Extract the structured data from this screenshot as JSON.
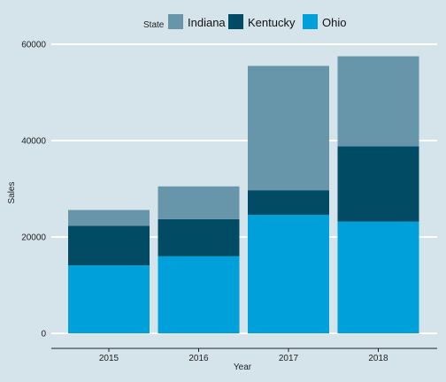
{
  "chart_data": {
    "type": "bar",
    "stacked": true,
    "title": "",
    "xlabel": "Year",
    "ylabel": "Sales",
    "categories": [
      "2015",
      "2016",
      "2017",
      "2018"
    ],
    "ylim": [
      0,
      62000
    ],
    "yticks": [
      0,
      20000,
      40000,
      60000
    ],
    "ytick_labels": [
      "0",
      "20000",
      "40000",
      "60000"
    ],
    "grid": "horizontal major",
    "legend": {
      "title": "State",
      "position": "top",
      "entries": [
        "Indiana",
        "Kentucky",
        "Ohio"
      ]
    },
    "series": [
      {
        "name": "Ohio",
        "color": "#00a0db",
        "values": [
          14100,
          16000,
          24600,
          23200
        ]
      },
      {
        "name": "Kentucky",
        "color": "#014b64",
        "values": [
          8200,
          7700,
          5100,
          15600
        ]
      },
      {
        "name": "Indiana",
        "color": "#6796aa",
        "values": [
          3300,
          6800,
          25800,
          18700
        ]
      }
    ],
    "background": "#d5e4eb"
  }
}
